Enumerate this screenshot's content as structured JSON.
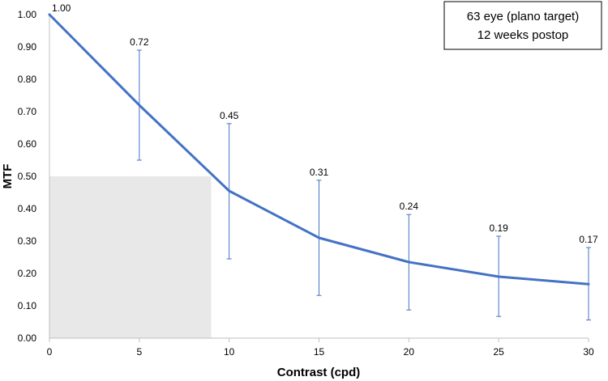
{
  "chart_data": {
    "type": "line",
    "title": "",
    "xlabel": "Contrast (cpd)",
    "ylabel": "MTF",
    "xlim": [
      0,
      30
    ],
    "ylim": [
      0,
      1
    ],
    "x_ticks": [
      0,
      5,
      10,
      15,
      20,
      25,
      30
    ],
    "x_tick_labels": [
      "0",
      "5",
      "10",
      "15",
      "20",
      "25",
      "30"
    ],
    "y_ticks": [
      0,
      0.1,
      0.2,
      0.3,
      0.4,
      0.5,
      0.6,
      0.7,
      0.8,
      0.9,
      1.0
    ],
    "y_tick_labels": [
      "0.00",
      "0.10",
      "0.20",
      "0.30",
      "0.40",
      "0.50",
      "0.60",
      "0.70",
      "0.80",
      "0.90",
      "1.00"
    ],
    "grid": false,
    "series": [
      {
        "name": "MTF",
        "x": [
          0,
          5,
          10,
          15,
          20,
          25,
          30
        ],
        "y": [
          1.0,
          0.72,
          0.455,
          0.31,
          0.235,
          0.19,
          0.167
        ],
        "labels": [
          "1.00",
          "0.72",
          "0.45",
          "0.31",
          "0.24",
          "0.19",
          "0.17"
        ],
        "error_low": [
          null,
          0.55,
          0.245,
          0.132,
          0.087,
          0.067,
          0.056
        ],
        "error_high": [
          null,
          0.89,
          0.663,
          0.488,
          0.382,
          0.315,
          0.28
        ],
        "color": "#4472C4"
      }
    ],
    "shaded_region": {
      "x": [
        0,
        9
      ],
      "y": [
        0,
        0.5
      ],
      "color": "#E8E8E8"
    },
    "annotation": {
      "lines": [
        "63 eye (plano target)",
        "12 weeks postop"
      ],
      "placement": "top-right"
    },
    "colors": {
      "axis": "#BFBFBF",
      "text": "#000000",
      "error_bar": "#4472C4"
    }
  }
}
